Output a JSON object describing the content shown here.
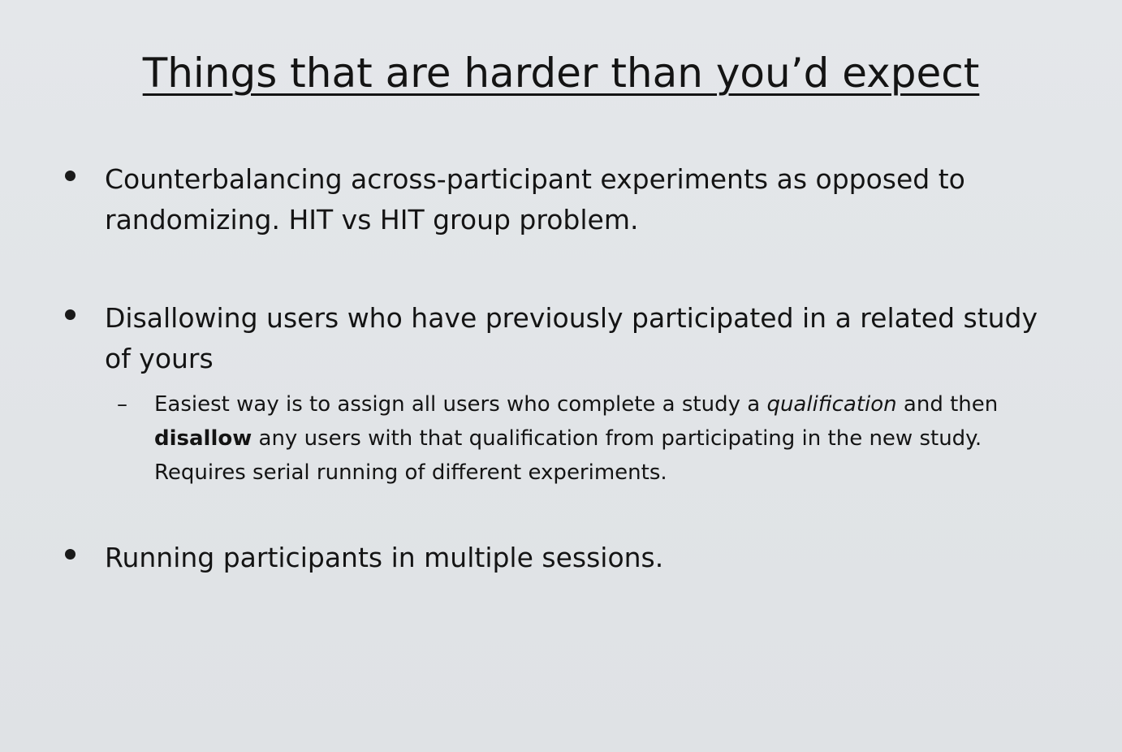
{
  "title": "Things that are harder than you’d expect",
  "bullets": [
    {
      "text": "Counterbalancing across-participant experiments as opposed to randomizing. HIT vs HIT group problem."
    },
    {
      "text": "Disallowing users who have previously participated in a related study of yours",
      "sub": {
        "dash": "–",
        "part1": "Easiest way is to assign all users who complete a study a ",
        "italic": "qualification",
        "part2": " and then ",
        "bold": "disallow",
        "part3": " any users with that qualification from participating in the new study. Requires serial running of different experiments."
      }
    },
    {
      "text": "Running participants in multiple sessions."
    }
  ]
}
